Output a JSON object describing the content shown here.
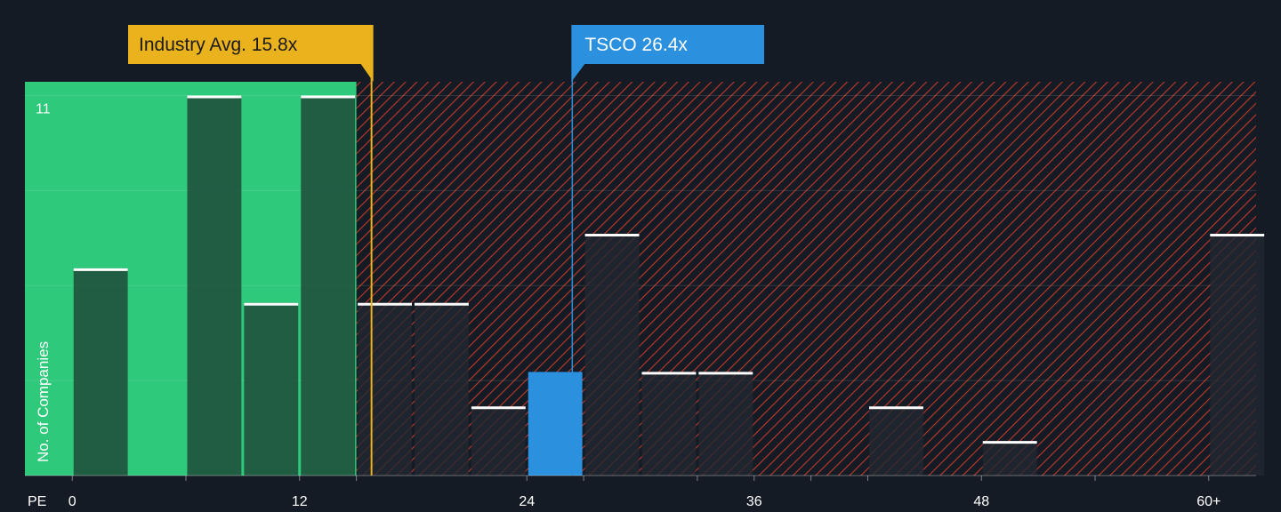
{
  "colors": {
    "background": "#151b24",
    "fair_zone": "#2ec97a",
    "overvalued_stripe": "#c0392b",
    "bar_fill": "#1f4a3a",
    "bar_fill_over": "#222831",
    "highlight_bar": "#2b90de",
    "bar_cap": "#ffffff",
    "industry_label_bg": "#eab21c",
    "company_label_bg": "#2b90de",
    "axis_text": "#ffffff"
  },
  "chart_data": {
    "type": "bar",
    "xlabel": "PE",
    "ylabel": "No. of Companies",
    "xlim": [
      -2.5,
      62.5
    ],
    "ylim": [
      0,
      11.4
    ],
    "x_ticks": [
      {
        "value": 0,
        "label": "0"
      },
      {
        "value": 12,
        "label": "12"
      },
      {
        "value": 24,
        "label": "24"
      },
      {
        "value": 36,
        "label": "36"
      },
      {
        "value": 48,
        "label": "48"
      },
      {
        "value": 60,
        "label": "60+"
      }
    ],
    "minor_ticks": [
      0,
      6,
      12,
      15,
      24,
      27,
      33,
      36,
      39,
      42,
      48,
      54,
      60
    ],
    "y_tick_labels": [
      {
        "value": 11,
        "label": "11"
      }
    ],
    "gridlines": [
      2.75,
      5.5,
      8.25,
      11
    ],
    "bin_width": 3,
    "bins": [
      {
        "x": 0,
        "count": 6
      },
      {
        "x": 6,
        "count": 11
      },
      {
        "x": 9,
        "count": 5
      },
      {
        "x": 12,
        "count": 11
      },
      {
        "x": 15,
        "count": 5
      },
      {
        "x": 18,
        "count": 5
      },
      {
        "x": 21,
        "count": 2
      },
      {
        "x": 24,
        "count": 3,
        "highlight": true
      },
      {
        "x": 27,
        "count": 7
      },
      {
        "x": 30,
        "count": 3
      },
      {
        "x": 33,
        "count": 3
      },
      {
        "x": 42,
        "count": 2
      },
      {
        "x": 48,
        "count": 1
      },
      {
        "x": 60,
        "count": 7
      }
    ],
    "fair_value_upper": 15,
    "industry": {
      "label": "Industry Avg. 15.8x",
      "value": 15.8
    },
    "company": {
      "label": "TSCO 26.4x",
      "value": 26.4
    }
  }
}
